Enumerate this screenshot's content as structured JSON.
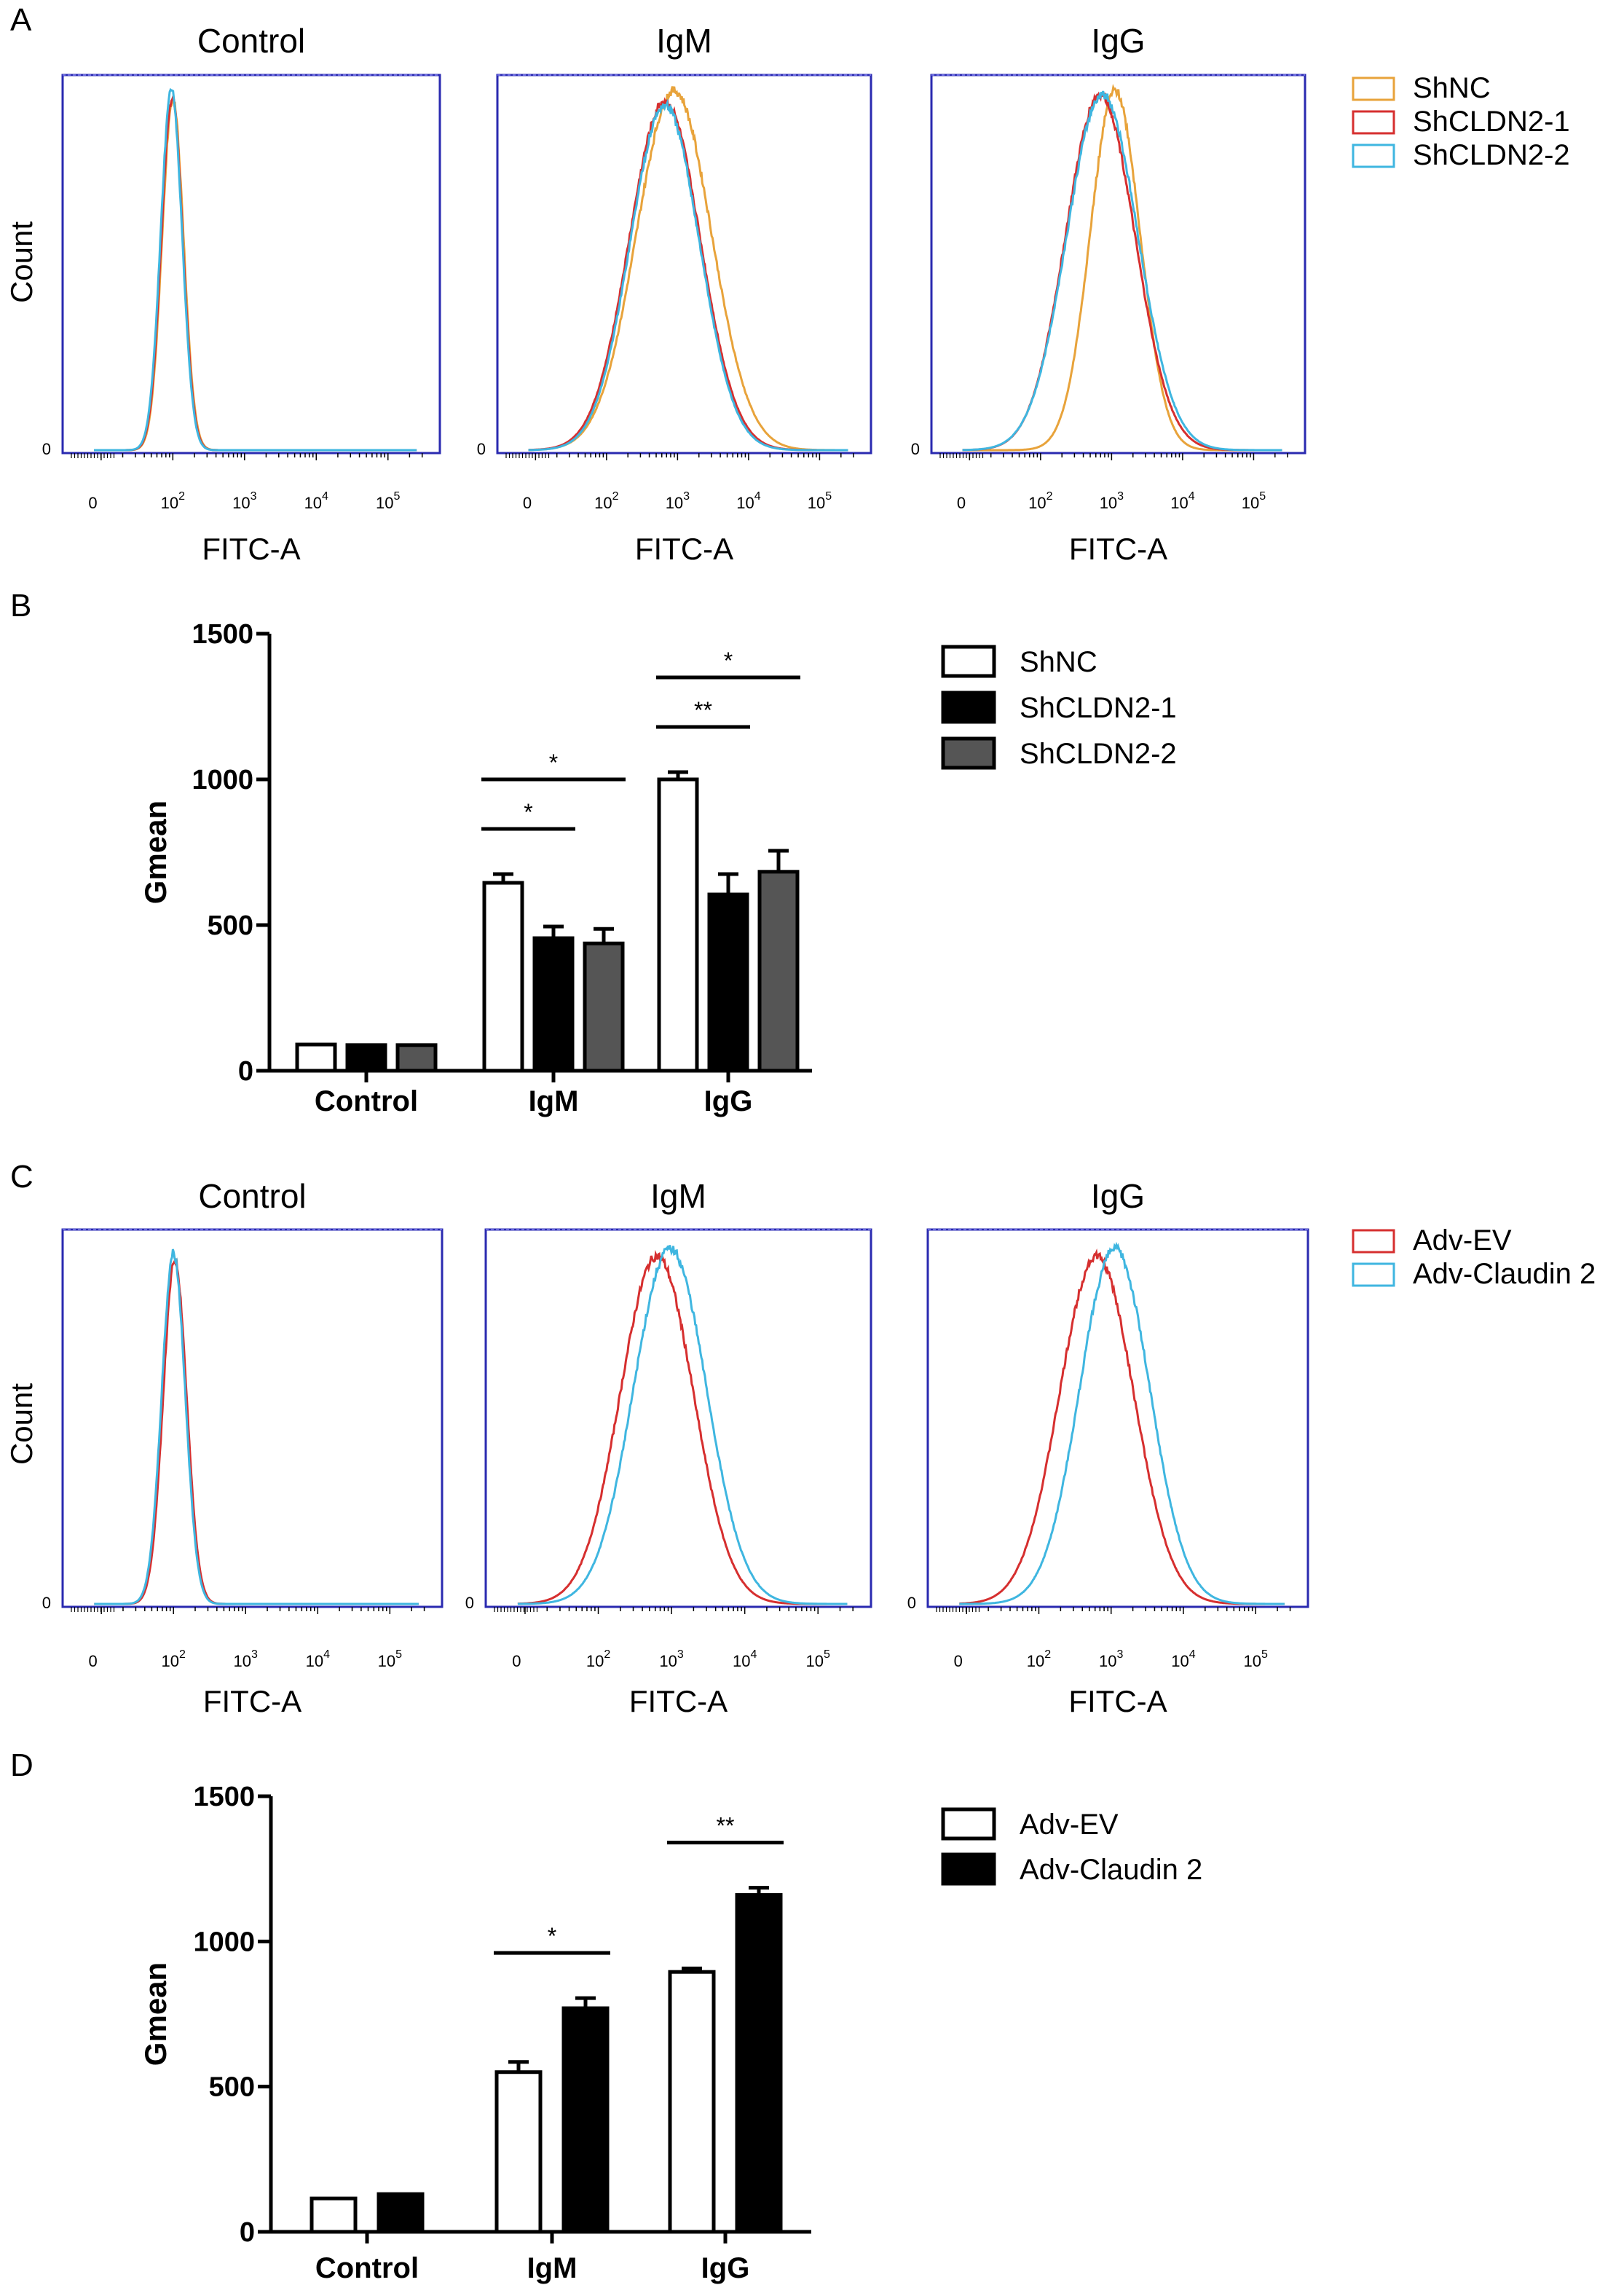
{
  "panels": [
    {
      "id": "A",
      "letter": "A",
      "type": "histogram",
      "y_label": "Count",
      "x_label": "FITC-A",
      "tick_zero": "0",
      "tick_base": "10",
      "tick_exponents": [
        "2",
        "3",
        "4",
        "5"
      ],
      "y_zero": "0",
      "subplots": [
        "Control",
        "IgM",
        "IgG"
      ],
      "legend": [
        {
          "label": "ShNC",
          "color": "#e8a33b"
        },
        {
          "label": "ShCLDN2-1",
          "color": "#d62f2f"
        },
        {
          "label": "ShCLDN2-2",
          "color": "#3fb6e0"
        }
      ],
      "peaks": {
        "Control": [
          [
            2.0,
            0.55,
            0.95
          ],
          [
            1.99,
            0.55,
            0.95
          ],
          [
            1.98,
            0.55,
            0.97
          ]
        ],
        "IgM": [
          [
            2.95,
            1.95,
            0.97
          ],
          [
            2.82,
            1.85,
            0.94
          ],
          [
            2.82,
            1.8,
            0.93
          ]
        ],
        "IgG": [
          [
            3.05,
            1.3,
            0.97
          ],
          [
            2.84,
            1.8,
            0.96
          ],
          [
            2.87,
            1.85,
            0.96
          ]
        ]
      }
    },
    {
      "id": "C",
      "letter": "C",
      "type": "histogram",
      "y_label": "Count",
      "x_label": "FITC-A",
      "tick_zero": "0",
      "tick_base": "10",
      "tick_exponents": [
        "2",
        "3",
        "4",
        "5"
      ],
      "y_zero": "0",
      "subplots": [
        "Control",
        "IgM",
        "IgG"
      ],
      "legend": [
        {
          "label": "Adv-EV",
          "color": "#d62f2f"
        },
        {
          "label": "Adv-Claudin 2",
          "color": "#3fb6e0"
        }
      ],
      "peaks": {
        "Control": [
          [
            2.02,
            0.6,
            0.93
          ],
          [
            2.0,
            0.6,
            0.95
          ]
        ],
        "IgM": [
          [
            2.8,
            1.85,
            0.94
          ],
          [
            2.98,
            1.85,
            0.96
          ]
        ],
        "IgG": [
          [
            2.8,
            1.9,
            0.94
          ],
          [
            3.05,
            1.8,
            0.96
          ]
        ]
      }
    }
  ],
  "chart_data": [
    {
      "id": "B",
      "letter": "B",
      "type": "bar",
      "categories": [
        "Control",
        "IgM",
        "IgG"
      ],
      "series": [
        {
          "name": "ShNC",
          "fill": "#ffffff",
          "values": [
            90,
            645,
            1000
          ],
          "errors": [
            0,
            30,
            25
          ]
        },
        {
          "name": "ShCLDN2-1",
          "fill": "#000000",
          "values": [
            88,
            455,
            605
          ],
          "errors": [
            0,
            40,
            70
          ]
        },
        {
          "name": "ShCLDN2-2",
          "fill": "#555555",
          "values": [
            88,
            437,
            683
          ],
          "errors": [
            0,
            50,
            72
          ]
        }
      ],
      "ylabel": "Gmean",
      "ylim": [
        0,
        1500
      ],
      "yticks": [
        "0",
        "500",
        "1000",
        "1500"
      ],
      "significance": [
        {
          "category": "IgM",
          "from": 0,
          "to": 1,
          "label": "*"
        },
        {
          "category": "IgM",
          "from": 0,
          "to": 2,
          "label": "*"
        },
        {
          "category": "IgG",
          "from": 0,
          "to": 1,
          "label": "**"
        },
        {
          "category": "IgG",
          "from": 0,
          "to": 2,
          "label": "*"
        }
      ]
    },
    {
      "id": "D",
      "letter": "D",
      "type": "bar",
      "categories": [
        "Control",
        "IgM",
        "IgG"
      ],
      "series": [
        {
          "name": "Adv-EV",
          "fill": "#ffffff",
          "values": [
            115,
            550,
            895
          ],
          "errors": [
            0,
            35,
            12
          ]
        },
        {
          "name": "Adv-Claudin 2",
          "fill": "#000000",
          "values": [
            130,
            770,
            1160
          ],
          "errors": [
            0,
            35,
            25
          ]
        }
      ],
      "ylabel": "Gmean",
      "ylim": [
        0,
        1500
      ],
      "yticks": [
        "0",
        "500",
        "1000",
        "1500"
      ],
      "significance": [
        {
          "category": "IgM",
          "from": 0,
          "to": 1,
          "label": "*"
        },
        {
          "category": "IgG",
          "from": 0,
          "to": 1,
          "label": "**"
        }
      ]
    }
  ]
}
